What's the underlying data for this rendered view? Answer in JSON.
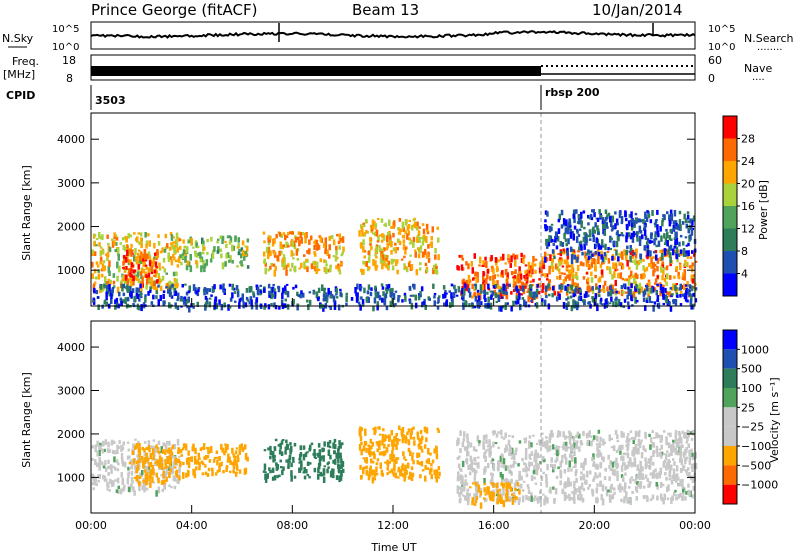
{
  "header": {
    "station": "Prince George (fitACF)",
    "beam": "Beam 13",
    "date": "10/Jan/2014"
  },
  "noise_panel": {
    "left_label": "N.Sky",
    "right_label": "N.Search",
    "right_dots": "........",
    "tick_top": "10^5",
    "tick_bottom": "10^0"
  },
  "freq_panel": {
    "left_label_line1": "Freq.",
    "left_label_line2": "[MHz]",
    "left_tick_top": "18",
    "left_tick_bottom": "8",
    "right_label": "Nave",
    "right_dots": "....",
    "right_tick_top": "60",
    "right_tick_bottom": "0"
  },
  "cpid_panel": {
    "label": "CPID",
    "segments": [
      {
        "start_hour": 0,
        "text": "3503"
      },
      {
        "start_hour": 18,
        "text": "rbsp 200"
      }
    ]
  },
  "colors": {
    "power": [
      "#0000ff",
      "#1f4fb0",
      "#2e7d5a",
      "#4fa35a",
      "#aad23a",
      "#ffa500",
      "#ff6a00",
      "#ff0000"
    ],
    "velocity": [
      "#ff0000",
      "#ff6a00",
      "#ffa500",
      "#c8c8c8",
      "#c8c8c8",
      "#4fa35a",
      "#2e7d5a",
      "#1f4fb0",
      "#0000ff"
    ]
  },
  "chart_data": [
    {
      "type": "heatmap",
      "panel": "power",
      "ylabel": "Slant Range [km]",
      "xlabel": "",
      "xlim": [
        0,
        24
      ],
      "ylim": [
        180,
        4600
      ],
      "yticks": [
        "1000",
        "2000",
        "3000",
        "4000"
      ],
      "colorbar_label": "Power [dB]",
      "colorbar_ticks": [
        "4",
        "8",
        "12",
        "16",
        "20",
        "24",
        "28"
      ],
      "colorbar_range": [
        0,
        32
      ],
      "regions": [
        {
          "x": [
            0.0,
            3.5
          ],
          "y": [
            600,
            1900
          ],
          "level": 20
        },
        {
          "x": [
            1.2,
            2.6
          ],
          "y": [
            700,
            1500
          ],
          "level": 28
        },
        {
          "x": [
            3.5,
            6.2
          ],
          "y": [
            1100,
            1800
          ],
          "level": 16
        },
        {
          "x": [
            6.8,
            10.0
          ],
          "y": [
            1000,
            1900
          ],
          "level": 22
        },
        {
          "x": [
            10.6,
            13.8
          ],
          "y": [
            1000,
            2200
          ],
          "level": 22
        },
        {
          "x": [
            14.5,
            18.0
          ],
          "y": [
            400,
            1400
          ],
          "level": 26
        },
        {
          "x": [
            18.0,
            24.0
          ],
          "y": [
            500,
            1500
          ],
          "level": 24
        },
        {
          "x": [
            18.0,
            24.0
          ],
          "y": [
            1300,
            2400
          ],
          "level": 6
        },
        {
          "x": [
            0.0,
            24.0
          ],
          "y": [
            180,
            700
          ],
          "level": 6
        }
      ]
    },
    {
      "type": "heatmap",
      "panel": "velocity",
      "ylabel": "Slant Range [km]",
      "xlabel": "Time UT",
      "xlim": [
        0,
        24
      ],
      "ylim": [
        180,
        4600
      ],
      "yticks": [
        "1000",
        "2000",
        "3000",
        "4000"
      ],
      "xticks": [
        "00:00",
        "04:00",
        "08:00",
        "12:00",
        "16:00",
        "20:00",
        "00:00"
      ],
      "colorbar_label": "Velocity [m s⁻¹]",
      "colorbar_ticks": [
        "1000",
        "500",
        "100",
        "25",
        "−25",
        "−100",
        "−500",
        "−1000"
      ],
      "regions": [
        {
          "x": [
            0.0,
            3.5
          ],
          "y": [
            700,
            1900
          ],
          "level": 0
        },
        {
          "x": [
            1.5,
            3.5
          ],
          "y": [
            900,
            1800
          ],
          "level": -150
        },
        {
          "x": [
            3.5,
            6.2
          ],
          "y": [
            1100,
            1800
          ],
          "level": -200
        },
        {
          "x": [
            6.8,
            10.0
          ],
          "y": [
            1000,
            1900
          ],
          "level": 300
        },
        {
          "x": [
            10.6,
            13.8
          ],
          "y": [
            1000,
            2200
          ],
          "level": -200
        },
        {
          "x": [
            14.5,
            24.0
          ],
          "y": [
            500,
            2100
          ],
          "level": 0
        },
        {
          "x": [
            15.0,
            17.0
          ],
          "y": [
            400,
            900
          ],
          "level": -200
        }
      ]
    }
  ]
}
